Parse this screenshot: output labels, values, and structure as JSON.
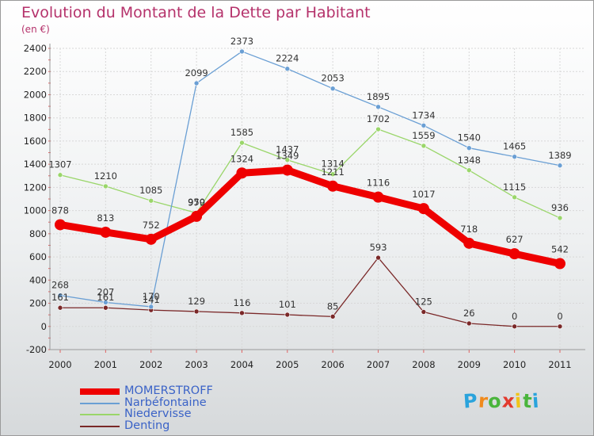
{
  "title": "Evolution du Montant de la Dette par Habitant",
  "unit": "(en €)",
  "logo": {
    "letters": [
      "P",
      "r",
      "o",
      "x",
      "i",
      "t",
      "i"
    ],
    "colors": [
      "#2aa3dc",
      "#f08a1d",
      "#4ab53c",
      "#e23a2e",
      "#f0c419",
      "#4ab53c",
      "#2aa3dc"
    ]
  },
  "chart_data": {
    "type": "line",
    "categories": [
      "2000",
      "2001",
      "2002",
      "2003",
      "2004",
      "2005",
      "2006",
      "2007",
      "2008",
      "2009",
      "2010",
      "2011"
    ],
    "ylim": [
      -200,
      2400
    ],
    "yticks": [
      "-200",
      "0",
      "200",
      "400",
      "600",
      "800",
      "1000",
      "1200",
      "1400",
      "1600",
      "1800",
      "2000",
      "2200",
      "2400"
    ],
    "grid": true,
    "legend_position": "bottom-left",
    "series": [
      {
        "name": "MOMERSTROFF",
        "color": "#ee0000",
        "width": 9,
        "marker": 7,
        "values": [
          878,
          813,
          752,
          950,
          1324,
          1349,
          1211,
          1116,
          1017,
          718,
          627,
          542
        ],
        "labels": [
          "878",
          "813",
          "752",
          "950",
          "1324",
          "1349",
          "1211",
          "1116",
          "1017",
          "718",
          "627",
          "542"
        ]
      },
      {
        "name": "Narbéfontaine",
        "color": "#6a9fd4",
        "width": 1.3,
        "marker": 3,
        "values": [
          268,
          207,
          170,
          2099,
          2373,
          2224,
          2053,
          1895,
          1734,
          1540,
          1465,
          1389
        ],
        "labels": [
          "268",
          "207",
          "170",
          "2099",
          "2373",
          "2224",
          "2053",
          "1895",
          "1734",
          "1540",
          "1465",
          "1389"
        ]
      },
      {
        "name": "Niedervisse",
        "color": "#9ad66a",
        "width": 1.3,
        "marker": 3,
        "values": [
          1307,
          1210,
          1085,
          979,
          1585,
          1437,
          1314,
          1702,
          1559,
          1348,
          1115,
          936
        ],
        "labels": [
          "1307",
          "1210",
          "1085",
          "979",
          "1585",
          "1437",
          "1314",
          "1702",
          "1559",
          "1348",
          "1115",
          "936"
        ]
      },
      {
        "name": "Denting",
        "color": "#7a2828",
        "width": 1.3,
        "marker": 3,
        "values": [
          161,
          161,
          141,
          129,
          116,
          101,
          85,
          593,
          125,
          26,
          0,
          0
        ],
        "labels": [
          "161",
          "161",
          "141",
          "129",
          "116",
          "101",
          "85",
          "593",
          "125",
          "26",
          "0",
          "0"
        ]
      }
    ]
  }
}
